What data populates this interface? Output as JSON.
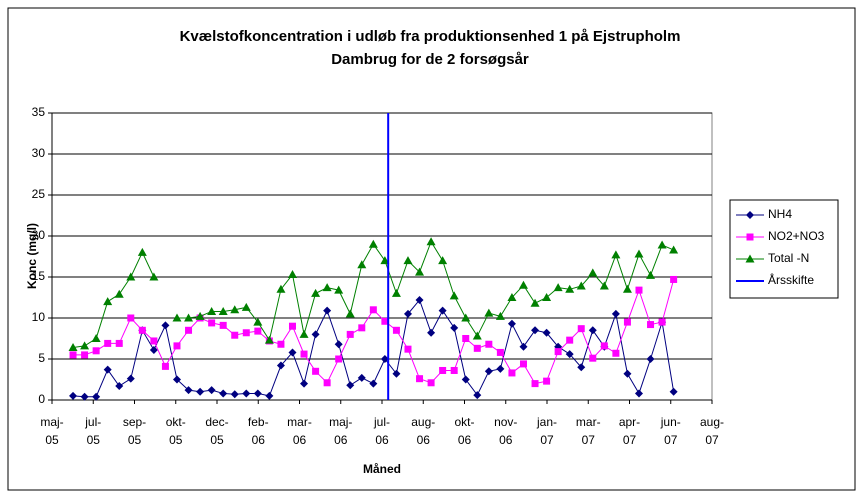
{
  "chart_data": {
    "type": "line",
    "title": "Kvælstofkoncentration i udløb fra produktionsenhed 1 på Ejstrupholm",
    "subtitle": "Dambrug for de 2 forsøgsår",
    "x_label": "Måned",
    "y_label": "Konc (mg/l)",
    "xlim": [
      0,
      16
    ],
    "xticks": [
      {
        "value": 0,
        "label": "maj-05"
      },
      {
        "value": 1,
        "label": "jul-05"
      },
      {
        "value": 2,
        "label": "sep-05"
      },
      {
        "value": 3,
        "label": "okt-05"
      },
      {
        "value": 4,
        "label": "dec-05"
      },
      {
        "value": 5,
        "label": "feb-06"
      },
      {
        "value": 6,
        "label": "mar-06"
      },
      {
        "value": 7,
        "label": "maj-06"
      },
      {
        "value": 8,
        "label": "jul-06"
      },
      {
        "value": 9,
        "label": "aug-06"
      },
      {
        "value": 10,
        "label": "okt-06"
      },
      {
        "value": 11,
        "label": "nov-06"
      },
      {
        "value": 12,
        "label": "jan-07"
      },
      {
        "value": 13,
        "label": "mar-07"
      },
      {
        "value": 14,
        "label": "apr-07"
      },
      {
        "value": 15,
        "label": "jun-07"
      },
      {
        "value": 16,
        "label": "aug-07"
      }
    ],
    "ylim": [
      0,
      35
    ],
    "yticks": [
      0,
      5,
      10,
      15,
      20,
      25,
      30,
      35
    ],
    "grid": true,
    "legend": "right",
    "x": [
      0.51,
      0.79,
      1.07,
      1.35,
      1.63,
      1.91,
      2.19,
      2.47,
      2.75,
      3.03,
      3.31,
      3.59,
      3.87,
      4.15,
      4.43,
      4.71,
      4.99,
      5.27,
      5.55,
      5.83,
      6.11,
      6.39,
      6.67,
      6.95,
      7.23,
      7.51,
      7.79,
      8.07,
      8.35,
      8.63,
      8.91,
      9.19,
      9.47,
      9.75,
      10.03,
      10.31,
      10.59,
      10.87,
      11.15,
      11.43,
      11.71,
      11.99,
      12.27,
      12.55,
      12.83,
      13.11,
      13.39,
      13.67,
      13.95,
      14.23,
      14.51,
      14.79,
      15.07
    ],
    "series": [
      {
        "name": "NH4",
        "color": "#000080",
        "marker": "diamond",
        "values": [
          0.5,
          0.4,
          0.4,
          3.7,
          1.7,
          2.6,
          8.5,
          6.1,
          9.1,
          2.5,
          1.2,
          1.0,
          1.2,
          0.8,
          0.7,
          0.8,
          0.8,
          0.5,
          4.2,
          5.8,
          2.0,
          8.0,
          10.9,
          6.8,
          1.8,
          2.7,
          2.0,
          5.0,
          3.2,
          10.5,
          12.2,
          8.2,
          10.9,
          8.8,
          2.5,
          0.6,
          3.5,
          3.8,
          9.3,
          6.5,
          8.5,
          8.2,
          6.5,
          5.6,
          4.0,
          8.5,
          6.5,
          10.5,
          3.2,
          0.8,
          5.0,
          9.5,
          1.0
        ]
      },
      {
        "name": "NO2+NO3",
        "color": "#ff00ff",
        "marker": "square",
        "values": [
          5.5,
          5.5,
          6.0,
          6.9,
          6.9,
          10.0,
          8.5,
          7.2,
          4.1,
          6.6,
          8.5,
          10.0,
          9.4,
          9.1,
          7.9,
          8.2,
          8.4,
          7.2,
          6.8,
          9.0,
          5.6,
          3.5,
          2.1,
          5.0,
          8.0,
          8.8,
          11.0,
          9.6,
          8.5,
          6.2,
          2.6,
          2.1,
          3.6,
          3.6,
          7.5,
          6.3,
          6.8,
          5.8,
          3.3,
          4.4,
          2.0,
          2.3,
          5.9,
          7.3,
          8.7,
          5.1,
          6.6,
          5.7,
          9.5,
          13.4,
          9.2,
          9.5,
          14.7
        ]
      },
      {
        "name": "Total -N",
        "color": "#008000",
        "marker": "triangle",
        "values": [
          6.4,
          6.6,
          7.5,
          12.0,
          12.9,
          15.0,
          18.0,
          15.0,
          null,
          10.0,
          10.0,
          10.2,
          10.8,
          10.8,
          11.0,
          11.3,
          9.5,
          7.3,
          13.5,
          15.3,
          8.0,
          13.0,
          13.7,
          13.4,
          10.5,
          16.5,
          19.0,
          17.0,
          13.0,
          17.0,
          15.6,
          19.3,
          17.0,
          12.7,
          10.0,
          7.8,
          10.6,
          10.2,
          12.5,
          14.0,
          11.8,
          12.5,
          13.7,
          13.5,
          13.9,
          15.5,
          13.9,
          17.7,
          13.5,
          17.8,
          15.2,
          18.9,
          18.3
        ]
      }
    ],
    "vline": {
      "name": "Årsskifte",
      "color": "#0000ff",
      "x": 8.15
    }
  }
}
